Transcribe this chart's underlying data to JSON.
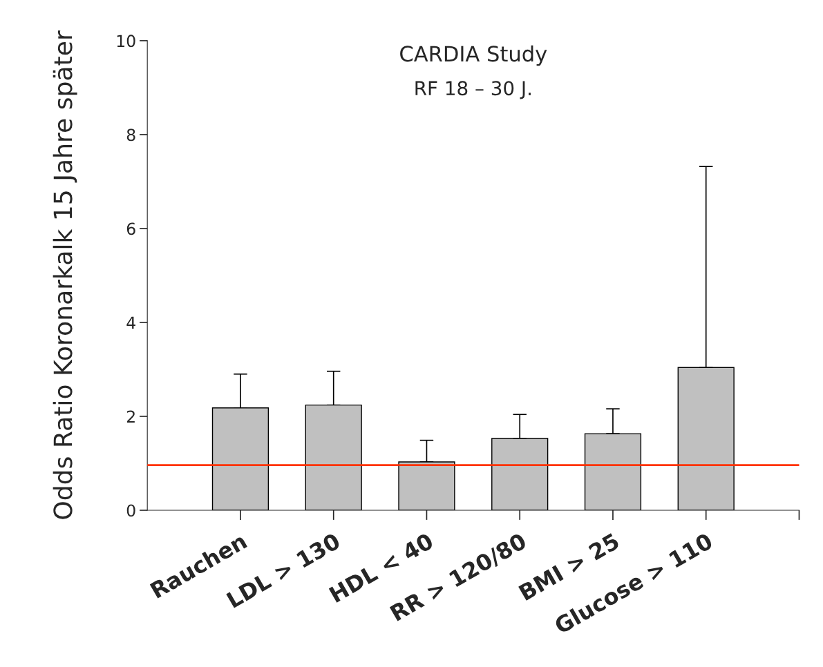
{
  "chart_data": {
    "type": "bar",
    "title": "CARDIA Study",
    "subtitle": "RF 18 – 30 J.",
    "ylabel": "Odds Ratio Koronarkalk 15 Jahre später",
    "categories": [
      "Rauchen",
      "LDL > 130",
      "HDL < 40",
      "RR > 120/80",
      "BMI > 25",
      "Glucose > 110"
    ],
    "values": [
      2.18,
      2.24,
      1.03,
      1.53,
      1.63,
      3.04
    ],
    "errors": [
      [
        2.18,
        2.9
      ],
      [
        2.24,
        2.96
      ],
      [
        1.03,
        1.49
      ],
      [
        1.53,
        2.04
      ],
      [
        1.63,
        2.16
      ],
      [
        3.04,
        7.32
      ]
    ],
    "color": "#c0c0c0",
    "ylim": [
      0,
      10
    ],
    "yticks": [
      0,
      2,
      4,
      6,
      8,
      10
    ],
    "ref_lines": [
      {
        "axis": "y",
        "value": 0.96,
        "color": "#ff3300"
      }
    ],
    "grid": false,
    "legend": false
  }
}
